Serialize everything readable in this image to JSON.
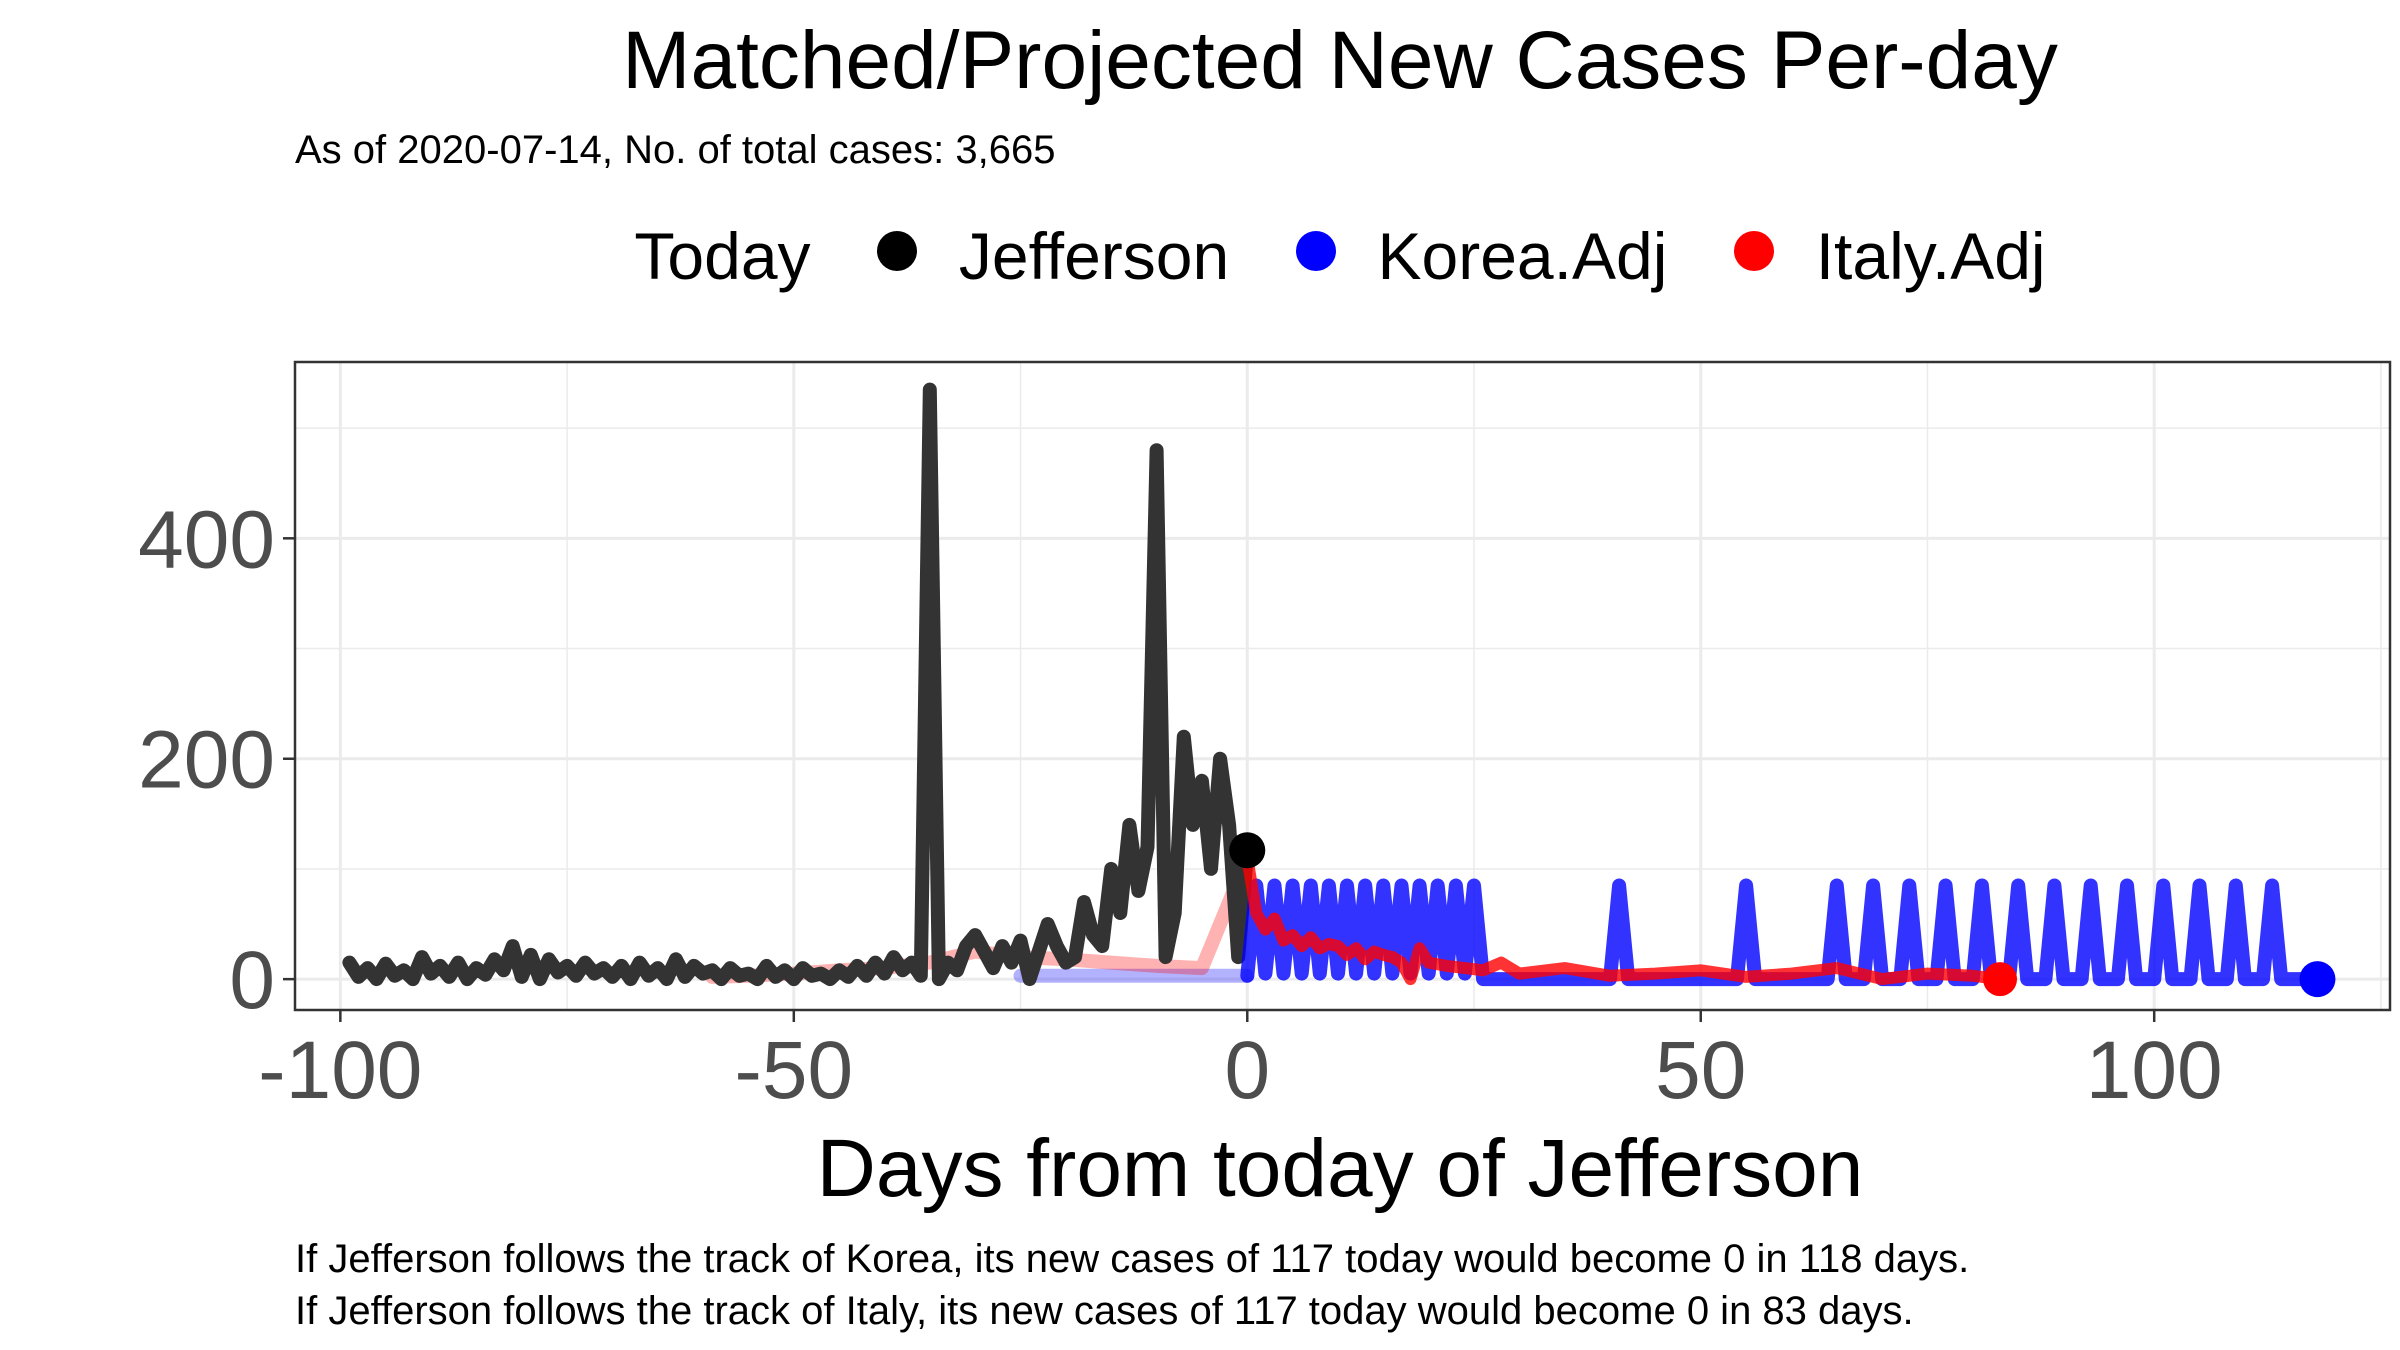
{
  "chart_data": {
    "type": "line",
    "title": "Matched/Projected New Cases Per-day",
    "subtitle": "As of 2020-07-14, No. of total cases: 3,665",
    "xlabel": "Days from today of Jefferson",
    "ylabel": "",
    "xlim": [
      -105,
      126
    ],
    "ylim": [
      -28,
      560
    ],
    "x_ticks": [
      -100,
      -50,
      0,
      50,
      100
    ],
    "x_tick_labels": [
      "-100",
      "-50",
      "0",
      "50",
      "100"
    ],
    "y_ticks": [
      0,
      200,
      400
    ],
    "y_tick_labels": [
      "0",
      "200",
      "400"
    ],
    "grid": true,
    "legend": {
      "position": "top",
      "title": "Today",
      "entries": [
        {
          "label": "Jefferson",
          "color": "#000000"
        },
        {
          "label": "Korea.Adj",
          "color": "#0000ff"
        },
        {
          "label": "Italy.Adj",
          "color": "#ff0000"
        }
      ]
    },
    "series": [
      {
        "name": "Jefferson",
        "color": "#333333",
        "x": [
          -99,
          -98,
          -97,
          -96,
          -95,
          -94,
          -93,
          -92,
          -91,
          -90,
          -89,
          -88,
          -87,
          -86,
          -85,
          -84,
          -83,
          -82,
          -81,
          -80,
          -79,
          -78,
          -77,
          -76,
          -75,
          -74,
          -73,
          -72,
          -71,
          -70,
          -69,
          -68,
          -67,
          -66,
          -65,
          -64,
          -63,
          -62,
          -61,
          -60,
          -59,
          -58,
          -57,
          -56,
          -55,
          -54,
          -53,
          -52,
          -51,
          -50,
          -49,
          -48,
          -47,
          -46,
          -45,
          -44,
          -43,
          -42,
          -41,
          -40,
          -39,
          -38,
          -37,
          -36,
          -35,
          -34,
          -33,
          -32,
          -31,
          -30,
          -29,
          -28,
          -27,
          -26,
          -25,
          -24,
          -23,
          -22,
          -21,
          -20,
          -19,
          -18,
          -17,
          -16,
          -15,
          -14,
          -13,
          -12,
          -11,
          -10,
          -9,
          -8,
          -7,
          -6,
          -5,
          -4,
          -3,
          -2,
          -1,
          0
        ],
        "y": [
          15,
          2,
          10,
          0,
          14,
          3,
          8,
          0,
          20,
          5,
          12,
          2,
          15,
          0,
          10,
          4,
          18,
          8,
          30,
          2,
          22,
          0,
          18,
          6,
          12,
          3,
          15,
          5,
          10,
          2,
          12,
          0,
          15,
          3,
          10,
          0,
          18,
          2,
          12,
          5,
          8,
          0,
          10,
          3,
          5,
          0,
          12,
          2,
          8,
          0,
          10,
          3,
          5,
          0,
          8,
          2,
          12,
          3,
          15,
          5,
          20,
          8,
          15,
          3,
          535,
          0,
          15,
          8,
          30,
          40,
          25,
          10,
          30,
          15,
          35,
          0,
          25,
          50,
          30,
          15,
          20,
          70,
          40,
          30,
          100,
          60,
          140,
          80,
          120,
          480,
          20,
          60,
          220,
          140,
          180,
          100,
          200,
          140,
          20,
          117
        ]
      },
      {
        "name": "Korea.Adj",
        "color": "#0000ff",
        "x": [
          -25,
          -20,
          -15,
          -10,
          -5,
          0,
          1,
          2,
          3,
          4,
          5,
          6,
          7,
          8,
          9,
          10,
          11,
          12,
          13,
          14,
          15,
          16,
          17,
          18,
          19,
          20,
          21,
          22,
          23,
          24,
          25,
          26,
          27,
          28,
          29,
          30,
          35,
          40,
          41,
          42,
          45,
          50,
          54,
          55,
          56,
          60,
          64,
          65,
          66,
          68,
          69,
          70,
          72,
          73,
          74,
          76,
          77,
          78,
          80,
          81,
          82,
          84,
          85,
          86,
          88,
          89,
          90,
          92,
          93,
          94,
          96,
          97,
          98,
          100,
          101,
          102,
          104,
          105,
          106,
          108,
          109,
          110,
          112,
          113,
          114,
          116,
          118
        ],
        "y": [
          3,
          3,
          3,
          3,
          3,
          3,
          85,
          5,
          85,
          5,
          85,
          5,
          85,
          5,
          85,
          5,
          85,
          5,
          85,
          5,
          85,
          5,
          85,
          5,
          85,
          5,
          85,
          5,
          85,
          5,
          85,
          0,
          0,
          0,
          0,
          0,
          0,
          0,
          85,
          0,
          0,
          0,
          0,
          85,
          0,
          0,
          0,
          85,
          0,
          0,
          85,
          0,
          0,
          85,
          0,
          0,
          85,
          0,
          0,
          85,
          0,
          0,
          85,
          0,
          0,
          85,
          0,
          0,
          85,
          0,
          0,
          85,
          0,
          0,
          85,
          0,
          0,
          85,
          0,
          0,
          85,
          0,
          0,
          85,
          0,
          0,
          0
        ]
      },
      {
        "name": "Italy.Adj",
        "color": "#ff0000",
        "x": [
          -59,
          -55,
          -50,
          -45,
          -40,
          -35,
          -30,
          -25,
          -20,
          -15,
          -10,
          -5,
          0,
          1,
          2,
          3,
          4,
          5,
          6,
          7,
          8,
          9,
          10,
          11,
          12,
          13,
          14,
          15,
          16,
          17,
          18,
          19,
          20,
          22,
          24,
          26,
          28,
          30,
          35,
          40,
          45,
          50,
          55,
          60,
          65,
          70,
          75,
          80,
          83
        ],
        "y": [
          2,
          3,
          5,
          8,
          10,
          15,
          25,
          20,
          18,
          15,
          12,
          10,
          110,
          60,
          45,
          55,
          35,
          40,
          30,
          38,
          28,
          32,
          30,
          22,
          28,
          18,
          25,
          22,
          20,
          15,
          0,
          28,
          15,
          12,
          10,
          8,
          15,
          5,
          10,
          3,
          5,
          8,
          2,
          5,
          10,
          0,
          5,
          3,
          0
        ],
        "endpoint": {
          "x": 83,
          "y": 0
        }
      }
    ],
    "today_point": {
      "x": 0,
      "y": 117
    }
  },
  "captions": {
    "line1": "If Jefferson follows the track of Korea, its new cases of 117 today would become 0 in 118 days.",
    "line2": "If Jefferson follows the track of Italy, its new cases of 117 today would become 0 in 83 days."
  }
}
